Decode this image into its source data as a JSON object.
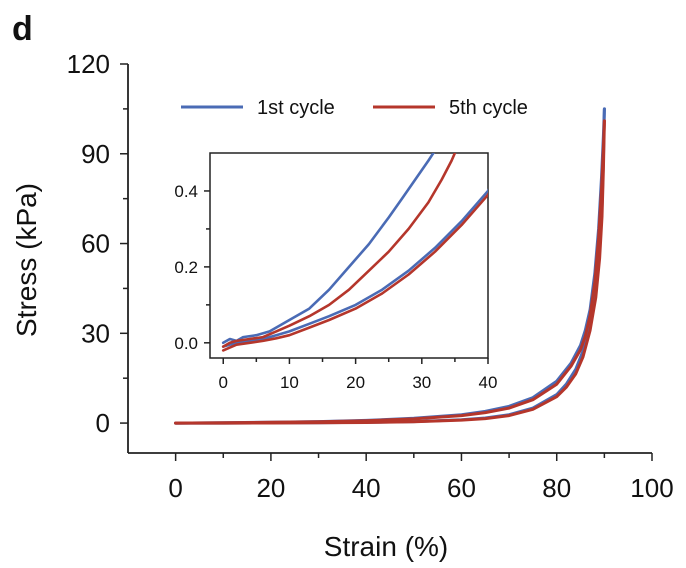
{
  "panel_label": "d",
  "chart_data": {
    "type": "line",
    "xlabel": "Strain (%)",
    "ylabel": "Stress (kPa)",
    "xlim": [
      -10,
      100
    ],
    "ylim": [
      -10,
      120
    ],
    "xticks": [
      0,
      20,
      40,
      60,
      80,
      100
    ],
    "yticks": [
      0,
      30,
      60,
      90,
      120
    ],
    "legend_position": "top",
    "grid": false,
    "series": [
      {
        "name": "1st cycle",
        "color": "#4A6BB5",
        "loading": [
          [
            0,
            0
          ],
          [
            10,
            0.1
          ],
          [
            20,
            0.3
          ],
          [
            30,
            0.5
          ],
          [
            40,
            0.9
          ],
          [
            50,
            1.6
          ],
          [
            60,
            2.8
          ],
          [
            65,
            3.9
          ],
          [
            70,
            5.6
          ],
          [
            75,
            8.5
          ],
          [
            80,
            14
          ],
          [
            83,
            20
          ],
          [
            85,
            26
          ],
          [
            86,
            31
          ],
          [
            87,
            38
          ],
          [
            88,
            50
          ],
          [
            88.8,
            65
          ],
          [
            89.4,
            82
          ],
          [
            89.8,
            96
          ],
          [
            90,
            105
          ]
        ],
        "unloading": [
          [
            90,
            105
          ],
          [
            89.8,
            88
          ],
          [
            89.5,
            72
          ],
          [
            89,
            58
          ],
          [
            88.2,
            45
          ],
          [
            87,
            33
          ],
          [
            85.5,
            24
          ],
          [
            84,
            18
          ],
          [
            82,
            13
          ],
          [
            80,
            9.5
          ],
          [
            75,
            5
          ],
          [
            70,
            2.8
          ],
          [
            65,
            1.7
          ],
          [
            60,
            1.1
          ],
          [
            50,
            0.5
          ],
          [
            40,
            0.25
          ],
          [
            30,
            0.1
          ],
          [
            20,
            0.05
          ],
          [
            10,
            0
          ],
          [
            0,
            0
          ]
        ]
      },
      {
        "name": "5th cycle",
        "color": "#B5362B",
        "loading": [
          [
            0,
            0
          ],
          [
            10,
            0.1
          ],
          [
            20,
            0.25
          ],
          [
            30,
            0.45
          ],
          [
            40,
            0.8
          ],
          [
            50,
            1.4
          ],
          [
            60,
            2.5
          ],
          [
            65,
            3.5
          ],
          [
            70,
            5
          ],
          [
            75,
            7.8
          ],
          [
            80,
            13
          ],
          [
            83,
            19
          ],
          [
            85,
            24.5
          ],
          [
            86,
            29
          ],
          [
            87,
            36
          ],
          [
            88,
            47
          ],
          [
            88.8,
            62
          ],
          [
            89.4,
            78
          ],
          [
            89.8,
            92
          ],
          [
            90,
            101
          ]
        ],
        "unloading": [
          [
            90,
            101
          ],
          [
            89.8,
            85
          ],
          [
            89.5,
            69
          ],
          [
            89,
            55
          ],
          [
            88.2,
            42
          ],
          [
            87,
            31
          ],
          [
            85.5,
            22
          ],
          [
            84,
            16.5
          ],
          [
            82,
            12
          ],
          [
            80,
            8.8
          ],
          [
            75,
            4.6
          ],
          [
            70,
            2.5
          ],
          [
            65,
            1.5
          ],
          [
            60,
            1
          ],
          [
            50,
            0.45
          ],
          [
            40,
            0.2
          ],
          [
            30,
            0.08
          ],
          [
            20,
            0.03
          ],
          [
            10,
            0
          ],
          [
            0,
            0
          ]
        ]
      }
    ],
    "inset": {
      "xlim": [
        -2,
        40
      ],
      "ylim": [
        -0.04,
        0.5
      ],
      "xticks": [
        0,
        10,
        20,
        30,
        40
      ],
      "yticks": [
        0.0,
        0.2,
        0.4
      ],
      "series": [
        {
          "name": "1st cycle",
          "color": "#4A6BB5",
          "loading": [
            [
              0,
              0.0
            ],
            [
              1,
              0.01
            ],
            [
              2,
              0.005
            ],
            [
              3,
              0.015
            ],
            [
              5,
              0.02
            ],
            [
              7,
              0.03
            ],
            [
              10,
              0.06
            ],
            [
              13,
              0.09
            ],
            [
              16,
              0.14
            ],
            [
              19,
              0.2
            ],
            [
              22,
              0.26
            ],
            [
              25,
              0.33
            ],
            [
              27,
              0.38
            ],
            [
              29,
              0.43
            ],
            [
              31,
              0.48
            ],
            [
              32.5,
              0.52
            ]
          ],
          "unloading": [
            [
              0,
              -0.01
            ],
            [
              2,
              0.0
            ],
            [
              4,
              0.005
            ],
            [
              6,
              0.01
            ],
            [
              8,
              0.02
            ],
            [
              10,
              0.03
            ],
            [
              13,
              0.05
            ],
            [
              16,
              0.07
            ],
            [
              20,
              0.1
            ],
            [
              24,
              0.14
            ],
            [
              28,
              0.19
            ],
            [
              32,
              0.25
            ],
            [
              36,
              0.32
            ],
            [
              40,
              0.4
            ],
            [
              41,
              0.43
            ]
          ]
        },
        {
          "name": "5th cycle",
          "color": "#B5362B",
          "loading": [
            [
              0,
              -0.01
            ],
            [
              1,
              0.0
            ],
            [
              2,
              0.005
            ],
            [
              4,
              0.01
            ],
            [
              6,
              0.015
            ],
            [
              8,
              0.03
            ],
            [
              10,
              0.045
            ],
            [
              13,
              0.07
            ],
            [
              16,
              0.1
            ],
            [
              19,
              0.14
            ],
            [
              22,
              0.19
            ],
            [
              25,
              0.24
            ],
            [
              28,
              0.3
            ],
            [
              31,
              0.37
            ],
            [
              33,
              0.43
            ],
            [
              34.5,
              0.48
            ],
            [
              35.5,
              0.52
            ]
          ],
          "unloading": [
            [
              0,
              -0.02
            ],
            [
              2,
              -0.005
            ],
            [
              4,
              0.0
            ],
            [
              6,
              0.005
            ],
            [
              8,
              0.012
            ],
            [
              10,
              0.02
            ],
            [
              13,
              0.04
            ],
            [
              16,
              0.06
            ],
            [
              20,
              0.09
            ],
            [
              24,
              0.13
            ],
            [
              28,
              0.18
            ],
            [
              32,
              0.24
            ],
            [
              36,
              0.31
            ],
            [
              40,
              0.39
            ],
            [
              41,
              0.42
            ]
          ]
        }
      ]
    }
  }
}
